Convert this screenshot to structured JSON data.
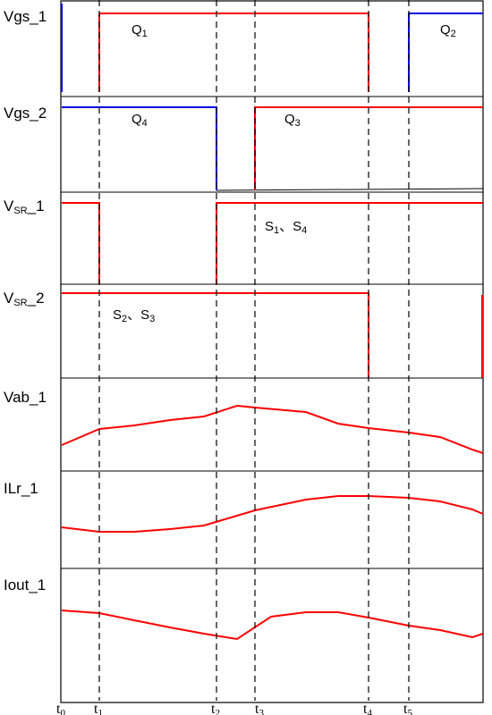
{
  "colors": {
    "red": "#ff0000",
    "blue": "#0000dd",
    "frame": "#000000",
    "dash": "#000000"
  },
  "time_markers": [
    {
      "main": "t",
      "sub": "0"
    },
    {
      "main": "t",
      "sub": "1"
    },
    {
      "main": "t",
      "sub": "2"
    },
    {
      "main": "t",
      "sub": "3"
    },
    {
      "main": "t",
      "sub": "4"
    },
    {
      "main": "t",
      "sub": "5"
    }
  ],
  "panels": [
    {
      "label": "Vgs_1",
      "label_main": "Vgs_1",
      "label_sub": "",
      "annotations": [
        {
          "main": "Q",
          "sub": "1"
        },
        {
          "main": "Q",
          "sub": "2"
        }
      ]
    },
    {
      "label": "Vgs_2",
      "label_main": "Vgs_2",
      "label_sub": "",
      "annotations": [
        {
          "main": "Q",
          "sub": "4"
        },
        {
          "main": "Q",
          "sub": "3"
        }
      ]
    },
    {
      "label": "VSR_1",
      "label_main": "V",
      "label_sub": "SR",
      "label_tail": "_1",
      "annotations": [
        {
          "text": "S1、S4",
          "parts": [
            {
              "main": "S",
              "sub": "1"
            },
            {
              "main": "、S",
              "sub": "4"
            }
          ]
        }
      ]
    },
    {
      "label": "VSR_2",
      "label_main": "V",
      "label_sub": "SR",
      "label_tail": "_2",
      "annotations": [
        {
          "text": "S2、S3",
          "parts": [
            {
              "main": "S",
              "sub": "2"
            },
            {
              "main": "、S",
              "sub": "3"
            }
          ]
        }
      ]
    },
    {
      "label": "Vab_1",
      "label_main": "Vab_1",
      "label_sub": "",
      "annotations": []
    },
    {
      "label": "ILr_1",
      "label_main": "ILr_1",
      "label_sub": "",
      "annotations": []
    },
    {
      "label": "Iout_1",
      "label_main": "Iout_1",
      "label_sub": "",
      "annotations": []
    }
  ]
}
